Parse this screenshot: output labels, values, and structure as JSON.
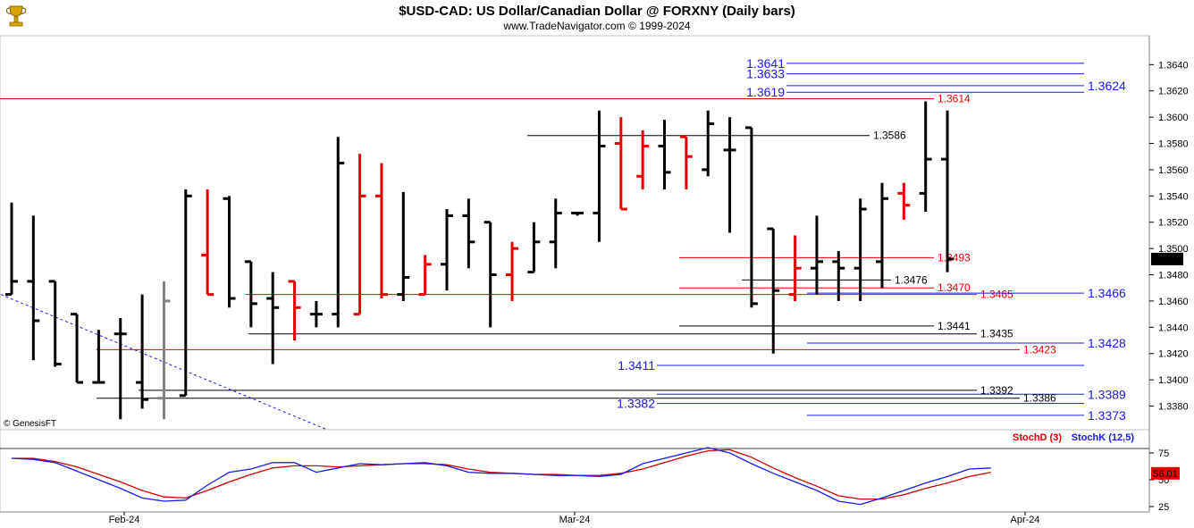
{
  "header": {
    "title": "$USD-CAD:  US Dollar/Canadian Dollar @ FORXNY  (Daily bars)",
    "subtitle": "www.TradeNavigator.com © 1999-2024",
    "watermark": "© GenesisFT"
  },
  "colors": {
    "up_bar": "#000000",
    "down_bar": "#e60000",
    "blue_level": "#1a1ae6",
    "red_level": "#e60000",
    "black_level": "#000000",
    "stoch_k": "#1a1ae6",
    "stoch_d": "#cc0000",
    "last_price_bg": "#000000",
    "stoch_badge_bg": "#e60000"
  },
  "chart_data": {
    "type": "bar",
    "price_axis": {
      "ylim": [
        1.3362,
        1.3662
      ],
      "ticks": [
        "1.3380",
        "1.3400",
        "1.3420",
        "1.3440",
        "1.3460",
        "1.3480",
        "1.3500",
        "1.3520",
        "1.3540",
        "1.3560",
        "1.3580",
        "1.3600",
        "1.3620",
        "1.3640"
      ],
      "last_price": "1.3492"
    },
    "x_labels": [
      "Feb-24",
      "Mar-24",
      "Apr-24"
    ],
    "ohlc": [
      {
        "o": 1.3465,
        "h": 1.3535,
        "l": 1.3465,
        "c": 1.3475,
        "dir": "up"
      },
      {
        "o": 1.3475,
        "h": 1.3525,
        "l": 1.3415,
        "c": 1.3445,
        "dir": "up"
      },
      {
        "o": 1.3475,
        "h": 1.3475,
        "l": 1.341,
        "c": 1.3412,
        "dir": "up"
      },
      {
        "o": 1.345,
        "h": 1.345,
        "l": 1.3398,
        "c": 1.3398,
        "dir": "up"
      },
      {
        "o": 1.3398,
        "h": 1.3438,
        "l": 1.3398,
        "c": 1.3398,
        "dir": "up"
      },
      {
        "o": 1.3435,
        "h": 1.3447,
        "l": 1.337,
        "c": 1.3435,
        "dir": "up"
      },
      {
        "o": 1.3398,
        "h": 1.3465,
        "l": 1.3378,
        "c": 1.3385,
        "dir": "up"
      },
      {
        "o": 1.3386,
        "h": 1.3475,
        "l": 1.337,
        "c": 1.346,
        "dir": "neutral"
      },
      {
        "o": 1.3388,
        "h": 1.3545,
        "l": 1.3388,
        "c": 1.354,
        "dir": "up"
      },
      {
        "o": 1.3495,
        "h": 1.3545,
        "l": 1.3465,
        "c": 1.3465,
        "dir": "down"
      },
      {
        "o": 1.3538,
        "h": 1.354,
        "l": 1.3455,
        "c": 1.3462,
        "dir": "up"
      },
      {
        "o": 1.349,
        "h": 1.349,
        "l": 1.344,
        "c": 1.3458,
        "dir": "up"
      },
      {
        "o": 1.3462,
        "h": 1.3482,
        "l": 1.3412,
        "c": 1.3455,
        "dir": "up"
      },
      {
        "o": 1.3475,
        "h": 1.3475,
        "l": 1.343,
        "c": 1.3455,
        "dir": "down"
      },
      {
        "o": 1.345,
        "h": 1.346,
        "l": 1.344,
        "c": 1.345,
        "dir": "up"
      },
      {
        "o": 1.345,
        "h": 1.3585,
        "l": 1.344,
        "c": 1.3565,
        "dir": "up"
      },
      {
        "o": 1.345,
        "h": 1.3572,
        "l": 1.345,
        "c": 1.354,
        "dir": "down"
      },
      {
        "o": 1.354,
        "h": 1.3565,
        "l": 1.3462,
        "c": 1.3465,
        "dir": "down"
      },
      {
        "o": 1.3465,
        "h": 1.3543,
        "l": 1.346,
        "c": 1.3478,
        "dir": "up"
      },
      {
        "o": 1.3465,
        "h": 1.3495,
        "l": 1.3465,
        "c": 1.3488,
        "dir": "down"
      },
      {
        "o": 1.3488,
        "h": 1.353,
        "l": 1.3468,
        "c": 1.3525,
        "dir": "up"
      },
      {
        "o": 1.3525,
        "h": 1.3538,
        "l": 1.3485,
        "c": 1.3505,
        "dir": "up"
      },
      {
        "o": 1.352,
        "h": 1.352,
        "l": 1.344,
        "c": 1.348,
        "dir": "up"
      },
      {
        "o": 1.348,
        "h": 1.3505,
        "l": 1.346,
        "c": 1.35,
        "dir": "down"
      },
      {
        "o": 1.3482,
        "h": 1.352,
        "l": 1.3482,
        "c": 1.3505,
        "dir": "up"
      },
      {
        "o": 1.3505,
        "h": 1.3538,
        "l": 1.3485,
        "c": 1.3527,
        "dir": "up"
      },
      {
        "o": 1.3527,
        "h": 1.3528,
        "l": 1.3525,
        "c": 1.3527,
        "dir": "up"
      },
      {
        "o": 1.3527,
        "h": 1.3605,
        "l": 1.3505,
        "c": 1.3578,
        "dir": "up"
      },
      {
        "o": 1.358,
        "h": 1.36,
        "l": 1.353,
        "c": 1.353,
        "dir": "down"
      },
      {
        "o": 1.3555,
        "h": 1.359,
        "l": 1.3545,
        "c": 1.3578,
        "dir": "down"
      },
      {
        "o": 1.3578,
        "h": 1.3598,
        "l": 1.3545,
        "c": 1.3558,
        "dir": "up"
      },
      {
        "o": 1.3585,
        "h": 1.3585,
        "l": 1.3545,
        "c": 1.357,
        "dir": "down"
      },
      {
        "o": 1.356,
        "h": 1.3605,
        "l": 1.3555,
        "c": 1.3595,
        "dir": "up"
      },
      {
        "o": 1.3575,
        "h": 1.36,
        "l": 1.3512,
        "c": 1.3575,
        "dir": "up"
      },
      {
        "o": 1.3592,
        "h": 1.3592,
        "l": 1.3455,
        "c": 1.3458,
        "dir": "up"
      },
      {
        "o": 1.3515,
        "h": 1.3515,
        "l": 1.342,
        "c": 1.3468,
        "dir": "up"
      },
      {
        "o": 1.3465,
        "h": 1.351,
        "l": 1.346,
        "c": 1.3485,
        "dir": "down"
      },
      {
        "o": 1.3485,
        "h": 1.3525,
        "l": 1.3465,
        "c": 1.349,
        "dir": "up"
      },
      {
        "o": 1.349,
        "h": 1.3498,
        "l": 1.346,
        "c": 1.3485,
        "dir": "up"
      },
      {
        "o": 1.3485,
        "h": 1.3538,
        "l": 1.346,
        "c": 1.353,
        "dir": "up"
      },
      {
        "o": 1.349,
        "h": 1.355,
        "l": 1.347,
        "c": 1.3538,
        "dir": "up"
      },
      {
        "o": 1.3542,
        "h": 1.355,
        "l": 1.3522,
        "c": 1.3533,
        "dir": "down"
      },
      {
        "o": 1.3542,
        "h": 1.3612,
        "l": 1.3528,
        "c": 1.3568,
        "dir": "up"
      },
      {
        "o": 1.3568,
        "h": 1.3605,
        "l": 1.3482,
        "c": 1.3492,
        "dir": "up"
      }
    ],
    "levels": [
      {
        "label": "1.3641",
        "value": 1.3641,
        "color": "blue",
        "label_pos": "left",
        "x_from": 880,
        "x_to": 1213
      },
      {
        "label": "1.3633",
        "value": 1.3633,
        "color": "blue",
        "label_pos": "left",
        "x_from": 880,
        "x_to": 1213
      },
      {
        "label": "1.3624",
        "value": 1.3624,
        "color": "blue",
        "label_pos": "right",
        "x_from": 880,
        "x_to": 1213
      },
      {
        "label": "1.3619",
        "value": 1.3619,
        "color": "blue",
        "label_pos": "left",
        "x_from": 880,
        "x_to": 1213
      },
      {
        "label": "1.3614",
        "value": 1.3614,
        "color": "red",
        "label_pos": "right-small",
        "x_from": 0,
        "x_to": 1045
      },
      {
        "label": "1.3586",
        "value": 1.3586,
        "color": "black",
        "label_pos": "right-small",
        "x_from": 590,
        "x_to": 973
      },
      {
        "label": "1.3493",
        "value": 1.3493,
        "color": "red",
        "label_pos": "right-small",
        "x_from": 760,
        "x_to": 1045
      },
      {
        "label": "1.3476",
        "value": 1.3476,
        "color": "black",
        "label_pos": "right-small",
        "x_from": 830,
        "x_to": 997
      },
      {
        "label": "1.3470",
        "value": 1.347,
        "color": "red",
        "label_pos": "right-small",
        "x_from": 760,
        "x_to": 1045
      },
      {
        "label": "1.3465",
        "value": 1.3465,
        "color": "red",
        "label_pos": "right-small",
        "x_from": 275,
        "x_to": 1093
      },
      {
        "label": "1.3466",
        "value": 1.3466,
        "color": "blue",
        "label_pos": "right",
        "x_from": 903,
        "x_to": 1213
      },
      {
        "label": "1.3441",
        "value": 1.3441,
        "color": "black",
        "label_pos": "right-small",
        "x_from": 760,
        "x_to": 1045
      },
      {
        "label": "1.3435",
        "value": 1.3435,
        "color": "black",
        "label_pos": "right-small",
        "x_from": 278,
        "x_to": 1093
      },
      {
        "label": "1.3428",
        "value": 1.3428,
        "color": "blue",
        "label_pos": "right",
        "x_from": 903,
        "x_to": 1213
      },
      {
        "label": "1.3423",
        "value": 1.3423,
        "color": "red",
        "label_pos": "right-small",
        "x_from": 108,
        "x_to": 1141
      },
      {
        "label": "1.3411",
        "value": 1.3411,
        "color": "blue",
        "label_pos": "left",
        "x_from": 735,
        "x_to": 1213
      },
      {
        "label": "1.3392",
        "value": 1.3392,
        "color": "black",
        "label_pos": "right-small",
        "x_from": 155,
        "x_to": 1093
      },
      {
        "label": "1.3389",
        "value": 1.3389,
        "color": "blue",
        "label_pos": "right",
        "x_from": 735,
        "x_to": 1213
      },
      {
        "label": "1.3386",
        "value": 1.3386,
        "color": "black",
        "label_pos": "right-small",
        "x_from": 108,
        "x_to": 1141
      },
      {
        "label": "1.3382",
        "value": 1.3382,
        "color": "blue",
        "label_pos": "left",
        "x_from": 735,
        "x_to": 1213
      },
      {
        "label": "1.3373",
        "value": 1.3373,
        "color": "blue",
        "label_pos": "right",
        "x_from": 903,
        "x_to": 1213
      }
    ],
    "trendline": {
      "from": {
        "bar": 0,
        "value": 1.3465
      },
      "to": {
        "bar": 14.5,
        "value": 1.3362
      }
    },
    "stochastic": {
      "legend_d": "StochD (3)",
      "legend_k": "StochK (12,5)",
      "ylim": [
        20,
        85
      ],
      "ticks": [
        "25",
        "50",
        "75"
      ],
      "last_value": "56.01",
      "k": [
        70,
        69,
        66,
        58,
        50,
        42,
        33,
        30,
        31,
        45,
        57,
        60,
        66,
        66,
        57,
        61,
        65,
        64,
        65,
        66,
        63,
        57,
        56,
        56,
        55,
        54,
        54,
        53,
        55,
        65,
        70,
        75,
        80,
        75,
        65,
        56,
        48,
        40,
        30,
        27,
        33,
        40,
        47,
        53,
        60,
        61
      ],
      "d": [
        70,
        70,
        67,
        62,
        55,
        48,
        40,
        34,
        33,
        40,
        48,
        55,
        61,
        63,
        63,
        62,
        63,
        64,
        65,
        65,
        64,
        60,
        57,
        56,
        55,
        55,
        54,
        54,
        56,
        60,
        66,
        72,
        77,
        78,
        71,
        61,
        52,
        44,
        35,
        32,
        32,
        36,
        42,
        47,
        53,
        57
      ]
    }
  }
}
